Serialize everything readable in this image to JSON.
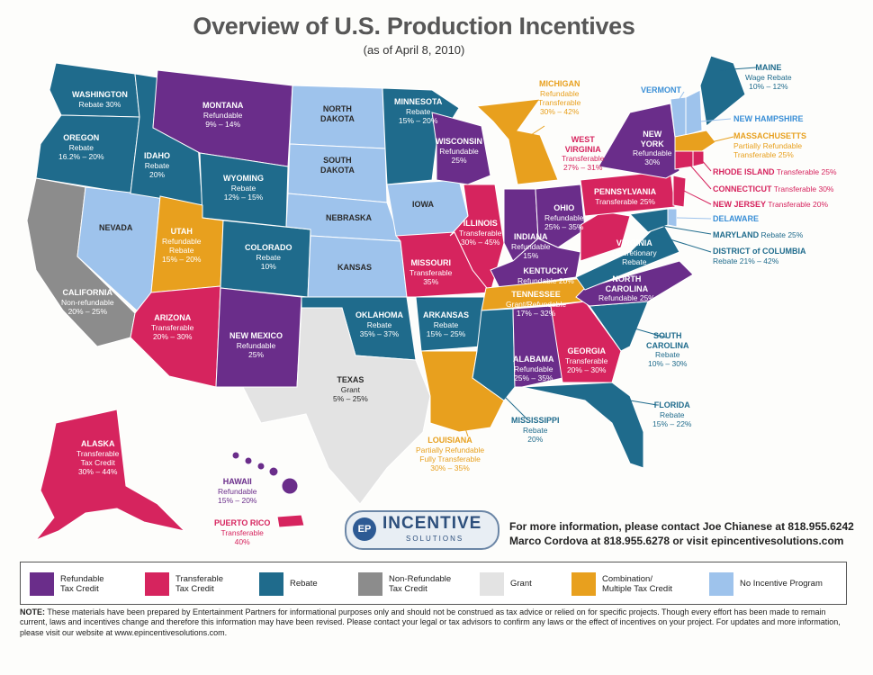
{
  "title": "Overview of U.S. Production Incentives",
  "subtitle": "(as of April 8, 2010)",
  "colors": {
    "refundable": "#6a2d8a",
    "transferable": "#d6245e",
    "rebate": "#1f6b8c",
    "nonrefundable": "#8c8c8c",
    "grant": "#e3e3e3",
    "combination": "#e8a01e",
    "no_incentive": "#9ec3ec"
  },
  "states": {
    "washington": {
      "name": "WASHINGTON",
      "detail": "Rebate 30%",
      "category": "rebate"
    },
    "oregon": {
      "name": "OREGON",
      "detail": "Rebate",
      "detail2": "16.2% – 20%",
      "category": "rebate"
    },
    "california": {
      "name": "CALIFORNIA",
      "detail": "Non-refundable",
      "detail2": "20% – 25%",
      "category": "nonrefundable"
    },
    "idaho": {
      "name": "IDAHO",
      "detail": "Rebate",
      "detail2": "20%",
      "category": "rebate"
    },
    "nevada": {
      "name": "NEVADA",
      "category": "no_incentive"
    },
    "montana": {
      "name": "MONTANA",
      "detail": "Refundable",
      "detail2": "9% – 14%",
      "category": "refundable"
    },
    "wyoming": {
      "name": "WYOMING",
      "detail": "Rebate",
      "detail2": "12% – 15%",
      "category": "rebate"
    },
    "utah": {
      "name": "UTAH",
      "detail": "Refundable",
      "detail2": "Rebate",
      "detail3": "15% – 20%",
      "category": "combination"
    },
    "arizona": {
      "name": "ARIZONA",
      "detail": "Transferable",
      "detail2": "20% – 30%",
      "category": "transferable"
    },
    "colorado": {
      "name": "COLORADO",
      "detail": "Rebate",
      "detail2": "10%",
      "category": "rebate"
    },
    "new_mexico": {
      "name": "NEW MEXICO",
      "detail": "Refundable",
      "detail2": "25%",
      "category": "refundable"
    },
    "north_dakota": {
      "name": "NORTH",
      "name2": "DAKOTA",
      "category": "no_incentive"
    },
    "south_dakota": {
      "name": "SOUTH",
      "name2": "DAKOTA",
      "category": "no_incentive"
    },
    "nebraska": {
      "name": "NEBRASKA",
      "category": "no_incentive"
    },
    "kansas": {
      "name": "KANSAS",
      "category": "no_incentive"
    },
    "oklahoma": {
      "name": "OKLAHOMA",
      "detail": "Rebate",
      "detail2": "35% – 37%",
      "category": "rebate"
    },
    "texas": {
      "name": "TEXAS",
      "detail": "Grant",
      "detail2": "5% – 25%",
      "category": "grant"
    },
    "minnesota": {
      "name": "MINNESOTA",
      "detail": "Rebate",
      "detail2": "15% – 20%",
      "category": "rebate"
    },
    "iowa": {
      "name": "IOWA",
      "category": "no_incentive"
    },
    "missouri": {
      "name": "MISSOURI",
      "detail": "Transferable",
      "detail2": "35%",
      "category": "transferable"
    },
    "arkansas": {
      "name": "ARKANSAS",
      "detail": "Rebate",
      "detail2": "15% – 25%",
      "category": "rebate"
    },
    "louisiana": {
      "name": "LOUISIANA",
      "detail": "Partially Refundable",
      "detail2": "Fully Transferable",
      "detail3": "30% – 35%",
      "category": "combination"
    },
    "wisconsin": {
      "name": "WISCONSIN",
      "detail": "Refundable",
      "detail2": "25%",
      "category": "refundable"
    },
    "illinois": {
      "name": "ILLINOIS",
      "detail": "Transferable",
      "detail2": "30% – 45%",
      "category": "transferable"
    },
    "indiana": {
      "name": "INDIANA",
      "detail": "Refundable",
      "detail2": "15%",
      "category": "refundable"
    },
    "michigan": {
      "name": "MICHIGAN",
      "detail": "Refundable",
      "detail2": "Transferable",
      "detail3": "30% – 42%",
      "category": "combination"
    },
    "ohio": {
      "name": "OHIO",
      "detail": "Refundable",
      "detail2": "25% – 35%",
      "category": "refundable"
    },
    "kentucky": {
      "name": "KENTUCKY",
      "detail": "Refundable 20%",
      "category": "refundable"
    },
    "tennessee": {
      "name": "TENNESSEE",
      "detail": "Grant/Refundable",
      "detail2": "17% – 32%",
      "category": "combination"
    },
    "mississippi": {
      "name": "MISSISSIPPI",
      "detail": "Rebate",
      "detail2": "20%",
      "category": "rebate"
    },
    "alabama": {
      "name": "ALABAMA",
      "detail": "Refundable",
      "detail2": "25% – 35%",
      "category": "refundable"
    },
    "georgia": {
      "name": "GEORGIA",
      "detail": "Transferable",
      "detail2": "20% – 30%",
      "category": "transferable"
    },
    "florida": {
      "name": "FLORIDA",
      "detail": "Rebate",
      "detail2": "15% – 22%",
      "category": "rebate"
    },
    "south_carolina": {
      "name": "SOUTH",
      "name2": "CAROLINA",
      "detail": "Rebate",
      "detail2": "10% – 30%",
      "category": "rebate"
    },
    "north_carolina": {
      "name": "NORTH",
      "name2": "CAROLINA",
      "detail": "Refundable 25%",
      "category": "refundable"
    },
    "virginia": {
      "name": "VIRGINIA",
      "detail": "Discretionary",
      "detail2": "Rebate",
      "category": "rebate"
    },
    "west_virginia": {
      "name": "WEST",
      "name2": "VIRGINIA",
      "detail": "Transferable",
      "detail2": "27% – 31%",
      "category": "transferable"
    },
    "pennsylvania": {
      "name": "PENNSYLVANIA",
      "detail": "Transferable 25%",
      "category": "transferable"
    },
    "new_york": {
      "name": "NEW",
      "name2": "YORK",
      "detail": "Refundable",
      "detail2": "30%",
      "category": "refundable"
    },
    "maine": {
      "name": "MAINE",
      "detail": "Wage Rebate",
      "detail2": "10% – 12%",
      "category": "rebate"
    },
    "vermont": {
      "name": "VERMONT",
      "category": "no_incentive"
    },
    "new_hampshire": {
      "name": "NEW HAMPSHIRE",
      "category": "no_incentive"
    },
    "massachusetts": {
      "name": "MASSACHUSETTS",
      "detail": "Partially Refundable",
      "detail2": "Transferable 25%",
      "category": "combination"
    },
    "rhode_island": {
      "name": "RHODE ISLAND",
      "detail": "Transferable 25%",
      "category": "transferable"
    },
    "connecticut": {
      "name": "CONNECTICUT",
      "detail": "Transferable 30%",
      "category": "transferable"
    },
    "new_jersey": {
      "name": "NEW JERSEY",
      "detail": "Transferable 20%",
      "category": "transferable"
    },
    "delaware": {
      "name": "DELAWARE",
      "category": "no_incentive"
    },
    "maryland": {
      "name": "MARYLAND",
      "detail": "Rebate 25%",
      "category": "rebate"
    },
    "dc": {
      "name": "DISTRICT of COLUMBIA",
      "detail": "Rebate 21% – 42%",
      "category": "rebate"
    },
    "alaska": {
      "name": "ALASKA",
      "detail": "Transferable",
      "detail2": "Tax Credit",
      "detail3": "30% – 44%",
      "category": "transferable"
    },
    "hawaii": {
      "name": "HAWAII",
      "detail": "Refundable",
      "detail2": "15% – 20%",
      "category": "refundable"
    },
    "puerto_rico": {
      "name": "PUERTO RICO",
      "detail": "Transferable",
      "detail2": "40%",
      "category": "transferable"
    }
  },
  "logo": {
    "badge": "EP",
    "main": "INCENTIVE",
    "sub": "SOLUTIONS"
  },
  "contact": {
    "line1": "For more information, please contact Joe Chianese at 818.955.6242",
    "line2": "Marco Cordova at 818.955.6278 or visit epincentivesolutions.com"
  },
  "legend": [
    {
      "key": "refundable",
      "line1": "Refundable",
      "line2": "Tax Credit"
    },
    {
      "key": "transferable",
      "line1": "Transferable",
      "line2": "Tax Credit"
    },
    {
      "key": "rebate",
      "line1": "Rebate",
      "line2": ""
    },
    {
      "key": "nonrefundable",
      "line1": "Non-Refundable",
      "line2": "Tax Credit"
    },
    {
      "key": "grant",
      "line1": "Grant",
      "line2": ""
    },
    {
      "key": "combination",
      "line1": "Combination/",
      "line2": "Multiple Tax Credit"
    },
    {
      "key": "no_incentive",
      "line1": "No Incentive Program",
      "line2": ""
    }
  ],
  "note": {
    "label": "NOTE:",
    "text": "These materials have been prepared by Entertainment Partners for informational purposes only and should not be construed as tax advice or relied on for specific projects. Though every effort has been made to remain current, laws and incentives change and therefore this information may have been revised. Please contact your legal or tax advisors to confirm any laws or the effect of incentives on your project. For updates and more information, please visit our website at www.epincentivesolutions.com."
  }
}
